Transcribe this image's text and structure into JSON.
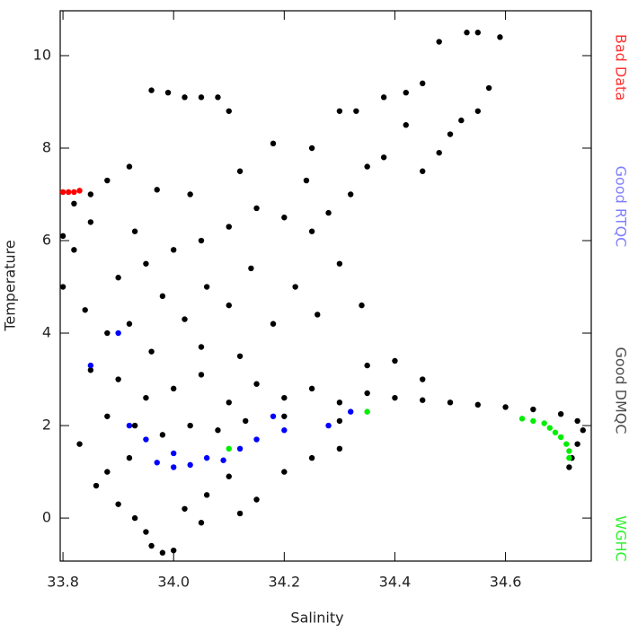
{
  "chart_data": {
    "type": "scatter",
    "x_label": "Salinity",
    "y_label": "Temperature",
    "xlim": [
      33.795,
      34.755
    ],
    "ylim": [
      -0.93,
      10.97
    ],
    "xticks": [
      33.8,
      {
        "value": 34,
        "label": "34.0"
      },
      34.2,
      34.4,
      34.6
    ],
    "yticks": [
      0,
      2,
      4,
      6,
      8,
      10
    ],
    "series": [
      {
        "name": "Bad Data",
        "color": "#ff0000",
        "x": [
          33.8,
          33.81,
          33.82,
          33.83
        ],
        "values": [
          7.05,
          7.05,
          7.05,
          7.08
        ]
      },
      {
        "name": "Good RTQC",
        "color": "#0000ff",
        "x": [
          33.85,
          33.9,
          33.92,
          33.95,
          33.97,
          34.0,
          34.03,
          34.06,
          34.09,
          34.12,
          34.15,
          34.2,
          34.18,
          34.28,
          34.32,
          34.0
        ],
        "values": [
          3.3,
          4.0,
          2.0,
          1.7,
          1.2,
          1.1,
          1.15,
          1.3,
          1.25,
          1.5,
          1.7,
          1.9,
          2.2,
          2.0,
          2.3,
          1.4
        ]
      },
      {
        "name": "Good DMQC",
        "color": "#000000",
        "x": [
          33.8,
          33.82,
          33.85,
          33.88,
          33.92,
          33.97,
          33.96,
          33.99,
          34.02,
          34.05,
          34.08,
          34.1,
          34.18,
          34.25,
          34.3,
          34.33,
          34.38,
          34.42,
          34.45,
          34.48,
          34.53,
          34.55,
          34.59,
          34.5,
          34.52,
          34.55,
          34.57,
          34.48,
          34.45,
          34.42,
          34.38,
          34.35,
          34.32,
          34.28,
          34.25,
          34.2,
          34.15,
          34.1,
          34.05,
          34.0,
          33.95,
          33.9,
          33.85,
          33.82,
          33.8,
          33.84,
          33.88,
          33.92,
          33.98,
          34.02,
          34.06,
          34.1,
          34.14,
          34.18,
          34.22,
          34.26,
          34.3,
          34.34,
          34.24,
          34.12,
          34.03,
          33.93,
          33.85,
          33.9,
          33.95,
          34.0,
          34.05,
          34.1,
          34.15,
          34.2,
          34.25,
          34.3,
          34.35,
          34.4,
          34.45,
          34.5,
          34.55,
          34.6,
          34.65,
          34.7,
          34.73,
          34.74,
          34.73,
          34.72,
          34.715,
          33.88,
          33.93,
          33.98,
          34.03,
          34.08,
          34.13,
          34.2,
          34.3,
          34.4,
          34.45,
          34.35,
          33.96,
          34.05,
          34.12,
          33.83,
          33.86,
          33.9,
          33.93,
          33.95,
          33.96,
          33.98,
          34.0,
          34.02,
          34.06,
          34.1,
          34.15,
          34.2,
          34.25,
          34.3,
          33.88,
          33.92,
          34.05,
          34.12
        ],
        "values": [
          6.1,
          6.8,
          7.0,
          7.3,
          7.6,
          7.1,
          9.25,
          9.2,
          9.1,
          9.1,
          9.1,
          8.8,
          8.1,
          8.0,
          8.8,
          8.8,
          9.1,
          9.2,
          9.4,
          10.3,
          10.5,
          10.5,
          10.4,
          8.3,
          8.6,
          8.8,
          9.3,
          7.9,
          7.5,
          8.5,
          7.8,
          7.6,
          7.0,
          6.6,
          6.2,
          6.5,
          6.7,
          6.3,
          6.0,
          5.8,
          5.5,
          5.2,
          6.4,
          5.8,
          5.0,
          4.5,
          4.0,
          4.2,
          4.8,
          4.3,
          5.0,
          4.6,
          5.4,
          4.2,
          5.0,
          4.4,
          5.5,
          4.6,
          7.3,
          7.5,
          7.0,
          6.2,
          3.2,
          3.0,
          2.6,
          2.8,
          3.1,
          2.5,
          2.9,
          2.6,
          2.8,
          2.5,
          2.7,
          2.6,
          2.55,
          2.5,
          2.45,
          2.4,
          2.35,
          2.25,
          2.1,
          1.9,
          1.6,
          1.3,
          1.1,
          2.2,
          2.0,
          1.8,
          2.0,
          1.9,
          2.1,
          2.2,
          2.1,
          3.4,
          3.0,
          3.3,
          3.6,
          3.7,
          3.5,
          1.6,
          0.7,
          0.3,
          0.0,
          -0.3,
          -0.6,
          -0.75,
          -0.7,
          0.2,
          0.5,
          0.9,
          0.4,
          1.0,
          1.3,
          1.5,
          1.0,
          1.3,
          -0.1,
          0.1
        ]
      },
      {
        "name": "WGHC",
        "color": "#00ee00",
        "x": [
          34.63,
          34.65,
          34.67,
          34.68,
          34.69,
          34.7,
          34.71,
          34.715,
          34.715,
          34.1,
          34.35
        ],
        "values": [
          2.15,
          2.1,
          2.05,
          1.95,
          1.85,
          1.75,
          1.6,
          1.45,
          1.3,
          1.5,
          2.3
        ]
      }
    ]
  }
}
